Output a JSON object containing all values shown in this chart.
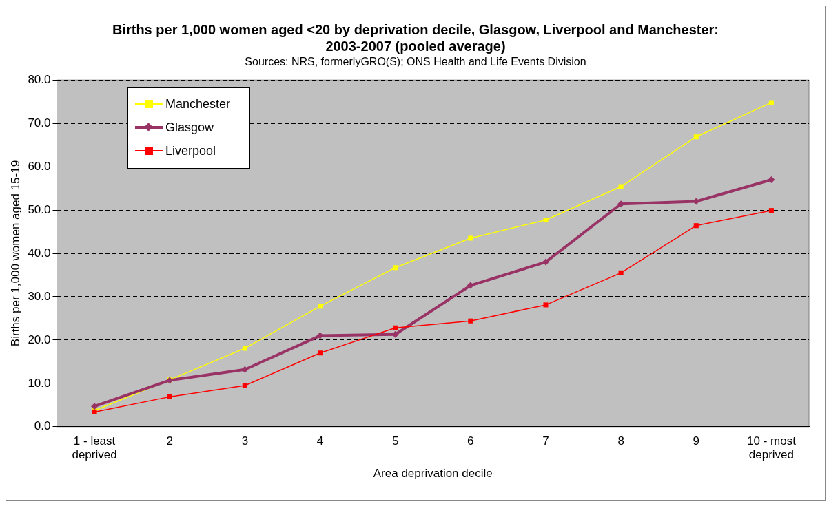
{
  "chart_data": {
    "type": "line",
    "title": "Births per 1,000 women aged <20 by deprivation decile, Glasgow, Liverpool and Manchester: 2003-2007 (pooled average)",
    "subtitle": "Sources: NRS, formerlyGRO(S);  ONS Health and Life Events Division",
    "xlabel": "Area deprivation decile",
    "ylabel": "Births per 1,000 women aged 15-19",
    "categories": [
      "1 - least deprived",
      "2",
      "3",
      "4",
      "5",
      "6",
      "7",
      "8",
      "9",
      "10 - most deprived"
    ],
    "series": [
      {
        "name": "Manchester",
        "color": "#ffff00",
        "marker": "square",
        "values": [
          3.7,
          10.8,
          18.1,
          27.8,
          36.7,
          43.5,
          47.7,
          55.4,
          66.9,
          74.8
        ]
      },
      {
        "name": "Glasgow",
        "color": "#993366",
        "marker": "diamond",
        "values": [
          4.7,
          10.7,
          13.2,
          21.0,
          21.3,
          32.6,
          38.0,
          51.4,
          52.0,
          57.0
        ]
      },
      {
        "name": "Liverpool",
        "color": "#ff0000",
        "marker": "square",
        "values": [
          3.4,
          6.9,
          9.5,
          17.0,
          22.8,
          24.4,
          28.1,
          35.5,
          46.4,
          49.9
        ]
      }
    ],
    "ylim": [
      0,
      80
    ],
    "yticks": [
      {
        "value": 0,
        "label": "0.0"
      },
      {
        "value": 10,
        "label": "10.0"
      },
      {
        "value": 20,
        "label": "20.0"
      },
      {
        "value": 30,
        "label": "30.0"
      },
      {
        "value": 40,
        "label": "40.0"
      },
      {
        "value": 50,
        "label": "50.0"
      },
      {
        "value": 60,
        "label": "60.0"
      },
      {
        "value": 70,
        "label": "70.0"
      },
      {
        "value": 80,
        "label": "80.0"
      }
    ],
    "grid": "y",
    "legend": "top left"
  }
}
